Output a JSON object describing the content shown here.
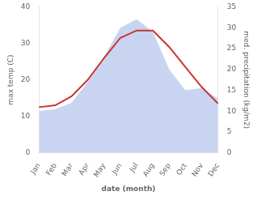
{
  "chart_data": {
    "type": "line",
    "categories": [
      "Jan",
      "Feb",
      "Mar",
      "Apr",
      "May",
      "Jun",
      "Jul",
      "Aug",
      "Sep",
      "Oct",
      "Nov",
      "Dec"
    ],
    "series": [
      {
        "type": "area",
        "color": "#c8d4f0",
        "axis": "y2",
        "values": [
          10.0,
          10.5,
          12.0,
          17.0,
          23.0,
          30.0,
          32.0,
          29.0,
          20.0,
          15.0,
          15.5,
          13.0
        ]
      },
      {
        "type": "line",
        "color": "#cc3333",
        "values": [
          12.5,
          13.0,
          15.5,
          20.0,
          26.0,
          31.5,
          33.5,
          33.5,
          29.0,
          23.5,
          18.0,
          13.5
        ]
      }
    ],
    "xlabel": "date (month)",
    "ylabel": "max temp (C)",
    "y2label": "med. precipitation (kg/m2)",
    "ylim": [
      0,
      40
    ],
    "yticks": [
      0,
      10,
      20,
      30,
      40
    ],
    "y2lim": [
      0,
      35
    ],
    "y2ticks": [
      0,
      5,
      10,
      15,
      20,
      25,
      30,
      35
    ],
    "grid": false
  }
}
